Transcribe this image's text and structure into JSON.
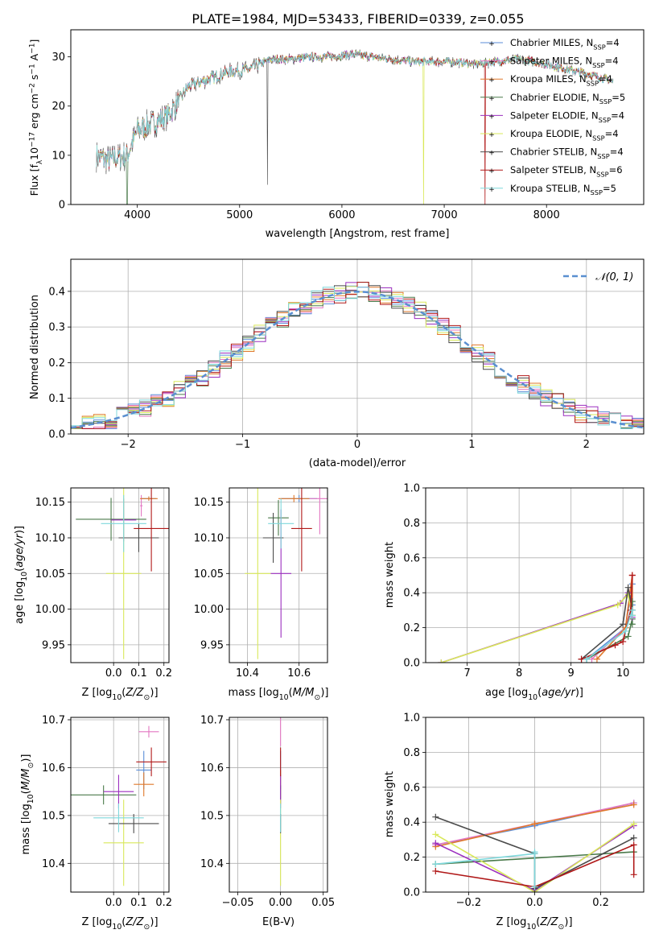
{
  "figure_title": "PLATE=1984, MJD=53433, FIBERID=0339, z=0.055",
  "colors": {
    "Chabrier MILES": "#5b8ed8",
    "Salpeter MILES": "#e377c2",
    "Kroupa MILES": "#e0782a",
    "Chabrier ELODIE": "#4a7a4a",
    "Salpeter ELODIE": "#9b2fbf",
    "Kroupa ELODIE": "#d9e85a",
    "Chabrier STELIB": "#4b4b4b",
    "Salpeter STELIB": "#b01818",
    "Kroupa STELIB": "#7fd8dc",
    "gaussian": "#5a8fd0",
    "grid": "#b0b0b0"
  },
  "chart_data": [
    {
      "id": "spectrum",
      "type": "line",
      "xlabel": "wavelength [Angstrom, rest frame]",
      "ylabel": "Flux [f_λ10^-17 erg cm^-2 s^-1 A^-1]",
      "xlim": [
        3350,
        8950
      ],
      "ylim": [
        0,
        35.5
      ],
      "xticks": [
        4000,
        5000,
        6000,
        7000,
        8000
      ],
      "yticks": [
        0,
        10,
        20,
        30
      ],
      "grid": false,
      "legend_position": "top-right",
      "legend": [
        "Chabrier MILES, N_SSP=4",
        "Salpeter MILES, N_SSP=4",
        "Kroupa MILES, N_SSP=4",
        "Chabrier ELODIE, N_SSP=5",
        "Salpeter ELODIE, N_SSP=4",
        "Kroupa ELODIE, N_SSP=4",
        "Chabrier STELIB, N_SSP=4",
        "Salpeter STELIB, N_SSP=6",
        "Kroupa STELIB, N_SSP=5"
      ],
      "continuum": {
        "x": [
          3600,
          3700,
          3800,
          3900,
          4000,
          4100,
          4200,
          4300,
          4400,
          4500,
          4700,
          4900,
          5100,
          5300,
          5500,
          5700,
          5900,
          6100,
          6300,
          6500,
          6700,
          6900,
          7100,
          7300,
          7500,
          7700,
          7900,
          8100,
          8300,
          8500,
          8650
        ],
        "y": [
          10,
          9,
          9.5,
          10,
          15,
          16,
          17,
          18,
          21,
          24,
          25.5,
          27,
          27.5,
          29.5,
          29.5,
          30,
          30,
          30.5,
          30,
          29.5,
          29,
          29,
          29,
          28.5,
          29,
          29.5,
          29,
          28,
          27,
          26,
          25
        ]
      },
      "series_x_range": [
        3600,
        8650
      ],
      "features": {
        "sky_line_x": 5270,
        "spike_x_elodie": 3900,
        "dropout_x_kroupa_elodie": 6800,
        "dropout_x_salpeter_stelib": 7400
      }
    },
    {
      "id": "residuals",
      "type": "histogram",
      "xlabel": "(data-model)/error",
      "ylabel": "Normed distribution",
      "xlim": [
        -2.5,
        2.5
      ],
      "ylim": [
        0,
        0.49
      ],
      "xticks": [
        -2,
        -1,
        0,
        1,
        2
      ],
      "yticks": [
        0.0,
        0.1,
        0.2,
        0.3,
        0.4
      ],
      "grid": true,
      "legend": [
        "𝒩(0, 1)"
      ],
      "legend_position": "top-right",
      "bin_edges": [
        -2.5,
        -2.4,
        -2.3,
        -2.2,
        -2.1,
        -2.0,
        -1.9,
        -1.8,
        -1.7,
        -1.6,
        -1.5,
        -1.4,
        -1.3,
        -1.2,
        -1.1,
        -1.0,
        -0.9,
        -0.8,
        -0.7,
        -0.6,
        -0.5,
        -0.4,
        -0.3,
        -0.2,
        -0.1,
        0.0,
        0.1,
        0.2,
        0.3,
        0.4,
        0.5,
        0.6,
        0.7,
        0.8,
        0.9,
        1.0,
        1.1,
        1.2,
        1.3,
        1.4,
        1.5,
        1.6,
        1.7,
        1.8,
        1.9,
        2.0,
        2.1,
        2.2,
        2.3,
        2.4,
        2.5
      ],
      "seeds": [
        1,
        2,
        3,
        4,
        5,
        6,
        7,
        8,
        9
      ]
    },
    {
      "id": "age_vs_Z",
      "type": "errorbar",
      "xlabel": "Z [log10(Z/Z⊙)]",
      "ylabel": "age [log10(age/yr)]",
      "xlim": [
        -0.17,
        0.22
      ],
      "ylim": [
        9.925,
        10.17
      ],
      "xticks": [
        0.0,
        0.1,
        0.2
      ],
      "yticks": [
        9.95,
        10.0,
        10.05,
        10.1,
        10.15
      ],
      "grid": true,
      "points": [
        {
          "x": 0.14,
          "y": 10.155,
          "xerr": 0.03,
          "yerr": 0.003
        },
        {
          "x": 0.11,
          "y": 10.145,
          "xerr": 0.005,
          "yerr": 0.015
        },
        {
          "x": 0.14,
          "y": 10.155,
          "xerr": 0.035,
          "yerr": 0.003
        },
        {
          "x": -0.01,
          "y": 10.126,
          "xerr": 0.14,
          "yerr": 0.03
        },
        {
          "x": 0.04,
          "y": 10.125,
          "xerr": 0.05,
          "yerr": 0.03
        },
        {
          "x": 0.04,
          "y": 10.05,
          "xerr": 0.07,
          "yerr": 0.12
        },
        {
          "x": 0.1,
          "y": 10.1,
          "xerr": 0.08,
          "yerr": 0.02
        },
        {
          "x": 0.15,
          "y": 10.113,
          "xerr": 0.07,
          "yerr": 0.06
        },
        {
          "x": 0.04,
          "y": 10.12,
          "xerr": 0.09,
          "yerr": 0.04
        }
      ]
    },
    {
      "id": "age_vs_mass",
      "type": "errorbar",
      "xlabel": "mass [log10(M/M⊙)]",
      "ylabel": "",
      "xlim": [
        10.33,
        10.71
      ],
      "ylim": [
        9.925,
        10.17
      ],
      "xticks": [
        10.4,
        10.6
      ],
      "yticks": [
        9.95,
        10.0,
        10.05,
        10.1,
        10.15
      ],
      "grid": true,
      "points": [
        {
          "x": 10.6,
          "y": 10.155,
          "xerr": 0.07,
          "yerr": 0.005
        },
        {
          "x": 10.68,
          "y": 10.155,
          "xerr": 0.04,
          "yerr": 0.05
        },
        {
          "x": 10.58,
          "y": 10.155,
          "xerr": 0.06,
          "yerr": 0.005
        },
        {
          "x": 10.52,
          "y": 10.128,
          "xerr": 0.04,
          "yerr": 0.025
        },
        {
          "x": 10.53,
          "y": 10.05,
          "xerr": 0.04,
          "yerr": 0.09
        },
        {
          "x": 10.44,
          "y": 10.05,
          "xerr": 0.05,
          "yerr": 0.12
        },
        {
          "x": 10.5,
          "y": 10.1,
          "xerr": 0.04,
          "yerr": 0.035
        },
        {
          "x": 10.61,
          "y": 10.113,
          "xerr": 0.04,
          "yerr": 0.06
        },
        {
          "x": 10.53,
          "y": 10.12,
          "xerr": 0.05,
          "yerr": 0.035
        }
      ]
    },
    {
      "id": "weight_vs_age",
      "type": "line",
      "xlabel": "age [log10(age/yr)]",
      "ylabel": "mass weight",
      "xlim": [
        6.2,
        10.4
      ],
      "ylim": [
        0,
        1.0
      ],
      "xticks": [
        7,
        8,
        9,
        10
      ],
      "yticks": [
        0.0,
        0.2,
        0.4,
        0.6,
        0.8,
        1.0
      ],
      "grid": true,
      "series": [
        {
          "x": [
            9.3,
            10.05,
            10.18,
            10.18
          ],
          "y": [
            0.02,
            0.2,
            0.45,
            0.33
          ]
        },
        {
          "x": [
            9.4,
            10.05,
            10.18,
            10.18
          ],
          "y": [
            0.02,
            0.2,
            0.5,
            0.27
          ]
        },
        {
          "x": [
            9.5,
            10.05,
            10.18,
            10.18
          ],
          "y": [
            0.02,
            0.2,
            0.5,
            0.27
          ]
        },
        {
          "x": [
            9.3,
            10.1,
            10.18,
            10.18,
            10.18
          ],
          "y": [
            0.02,
            0.15,
            0.25,
            0.35,
            0.22
          ]
        },
        {
          "x": [
            6.5,
            9.95,
            10.1,
            10.18
          ],
          "y": [
            0.0,
            0.34,
            0.4,
            0.26
          ]
        },
        {
          "x": [
            6.5,
            9.9,
            10.1,
            10.18
          ],
          "y": [
            0.0,
            0.33,
            0.39,
            0.27
          ]
        },
        {
          "x": [
            9.2,
            10.0,
            10.1,
            10.18
          ],
          "y": [
            0.02,
            0.22,
            0.43,
            0.3
          ]
        },
        {
          "x": [
            9.2,
            9.85,
            10.0,
            10.15,
            10.18
          ],
          "y": [
            0.02,
            0.1,
            0.12,
            0.3,
            0.5
          ]
        },
        {
          "x": [
            9.3,
            10.05,
            10.18,
            10.18
          ],
          "y": [
            0.02,
            0.18,
            0.3,
            0.27
          ]
        }
      ]
    },
    {
      "id": "mass_vs_Z",
      "type": "errorbar",
      "xlabel": "Z [log10(Z/Z⊙)]",
      "ylabel": "mass [log10(M/M⊙)]",
      "xlim": [
        -0.17,
        0.22
      ],
      "ylim": [
        10.34,
        10.705
      ],
      "xticks": [
        0.0,
        0.1,
        0.2
      ],
      "yticks": [
        10.4,
        10.5,
        10.6,
        10.7
      ],
      "grid": true,
      "points": [
        {
          "x": 0.12,
          "y": 10.595,
          "xerr": 0.03,
          "yerr": 0.04
        },
        {
          "x": 0.14,
          "y": 10.675,
          "xerr": 0.04,
          "yerr": 0.012
        },
        {
          "x": 0.12,
          "y": 10.565,
          "xerr": 0.04,
          "yerr": 0.025
        },
        {
          "x": -0.04,
          "y": 10.543,
          "xerr": 0.13,
          "yerr": 0.02
        },
        {
          "x": 0.02,
          "y": 10.55,
          "xerr": 0.06,
          "yerr": 0.035
        },
        {
          "x": 0.04,
          "y": 10.443,
          "xerr": 0.08,
          "yerr": 0.09
        },
        {
          "x": 0.08,
          "y": 10.483,
          "xerr": 0.1,
          "yerr": 0.02
        },
        {
          "x": 0.15,
          "y": 10.612,
          "xerr": 0.06,
          "yerr": 0.03
        },
        {
          "x": 0.02,
          "y": 10.495,
          "xerr": 0.1,
          "yerr": 0.03
        }
      ]
    },
    {
      "id": "mass_vs_EBV",
      "type": "errorbar",
      "xlabel": "E(B-V)",
      "ylabel": "",
      "xlim": [
        -0.06,
        0.055
      ],
      "ylim": [
        10.34,
        10.705
      ],
      "xticks": [
        -0.05,
        0.0,
        0.05
      ],
      "yticks": [
        10.4,
        10.5,
        10.6,
        10.7
      ],
      "grid": true,
      "points": [
        {
          "x": 0.0,
          "y": 10.595,
          "xerr": 0.0,
          "yerr": 0.04
        },
        {
          "x": 0.0,
          "y": 10.675,
          "xerr": 0.0,
          "yerr": 0.03
        },
        {
          "x": 0.0,
          "y": 10.565,
          "xerr": 0.0,
          "yerr": 0.03
        },
        {
          "x": 0.0,
          "y": 10.543,
          "xerr": 0.0,
          "yerr": 0.02
        },
        {
          "x": 0.0,
          "y": 10.55,
          "xerr": 0.0,
          "yerr": 0.035
        },
        {
          "x": 0.0,
          "y": 10.443,
          "xerr": 0.0,
          "yerr": 0.09
        },
        {
          "x": 0.0,
          "y": 10.483,
          "xerr": 0.0,
          "yerr": 0.02
        },
        {
          "x": 0.0,
          "y": 10.612,
          "xerr": 0.0,
          "yerr": 0.03
        },
        {
          "x": 0.0,
          "y": 10.495,
          "xerr": 0.0,
          "yerr": 0.03
        }
      ]
    },
    {
      "id": "weight_vs_Z",
      "type": "line",
      "xlabel": "Z [log10(Z/Z⊙)]",
      "ylabel": "mass weight",
      "xlim": [
        -0.33,
        0.33
      ],
      "ylim": [
        0,
        1.0
      ],
      "xticks": [
        -0.2,
        0.0,
        0.2
      ],
      "yticks": [
        0.0,
        0.2,
        0.4,
        0.6,
        0.8,
        1.0
      ],
      "grid": true,
      "series": [
        {
          "x": [
            -0.3,
            0.0,
            0.0,
            0.3
          ],
          "y": [
            0.27,
            0.38,
            0.38,
            0.51
          ]
        },
        {
          "x": [
            -0.3,
            0.0,
            0.0,
            0.3
          ],
          "y": [
            0.27,
            0.39,
            0.39,
            0.51
          ]
        },
        {
          "x": [
            -0.3,
            0.0,
            0.0,
            0.3
          ],
          "y": [
            0.26,
            0.39,
            0.39,
            0.5
          ]
        },
        {
          "x": [
            -0.3,
            0.3,
            0.3
          ],
          "y": [
            0.16,
            0.23,
            0.23
          ]
        },
        {
          "x": [
            -0.3,
            0.0,
            0.3
          ],
          "y": [
            0.28,
            0.01,
            0.38
          ]
        },
        {
          "x": [
            -0.3,
            0.0,
            0.3
          ],
          "y": [
            0.33,
            0.0,
            0.39
          ]
        },
        {
          "x": [
            -0.3,
            0.0,
            0.0,
            0.3
          ],
          "y": [
            0.43,
            0.22,
            0.02,
            0.31
          ]
        },
        {
          "x": [
            -0.3,
            0.0,
            0.3,
            0.3
          ],
          "y": [
            0.12,
            0.03,
            0.27,
            0.1
          ]
        },
        {
          "x": [
            -0.3,
            0.0,
            0.0,
            0.0
          ],
          "y": [
            0.16,
            0.22,
            0.03,
            0.23
          ]
        }
      ]
    }
  ]
}
